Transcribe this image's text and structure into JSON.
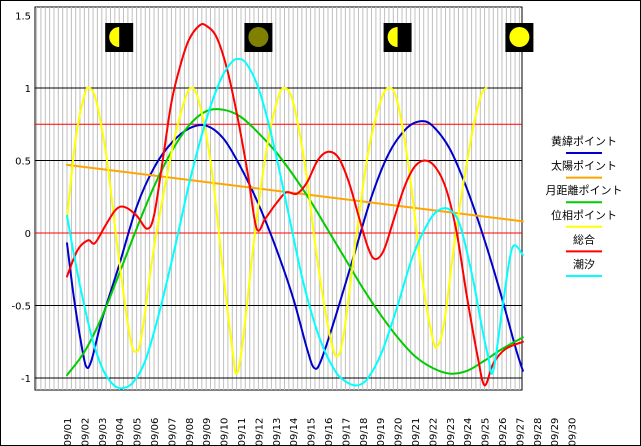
{
  "chart_data": {
    "type": "line",
    "title": "",
    "xlabel": "",
    "ylabel": "",
    "ylim": [
      -1.1,
      1.5
    ],
    "y_ticks": [
      {
        "value": 1.5,
        "label": "1.5"
      },
      {
        "value": 1,
        "label": "1"
      },
      {
        "value": 0.5,
        "label": "0.5"
      },
      {
        "value": 0,
        "label": "0"
      },
      {
        "value": -0.5,
        "label": "-0.5"
      },
      {
        "value": -1,
        "label": "-1"
      }
    ],
    "categories": [
      "09/01",
      "09/02",
      "09/03",
      "09/04",
      "09/05",
      "09/06",
      "09/07",
      "09/08",
      "09/09",
      "09/10",
      "09/11",
      "09/12",
      "09/13",
      "09/14",
      "09/15",
      "09/16",
      "09/17",
      "09/18",
      "09/19",
      "09/20",
      "09/21",
      "09/22",
      "09/23",
      "09/24",
      "09/25",
      "09/26",
      "09/27",
      "09/28",
      "09/29",
      "09/30"
    ],
    "grid": "horizontal black gridlines at 1, 0.5, -0.5, -1; red lines at 0.75 and 0; gray vertical lines every quarter day",
    "red_lines": [
      0.75,
      0
    ],
    "legend_position": "right",
    "moon_phases": [
      {
        "category": "09/04",
        "phase": "first-quarter",
        "color": "#ffff00"
      },
      {
        "category": "09/12",
        "phase": "new-moon",
        "color": "#808000"
      },
      {
        "category": "09/20",
        "phase": "first-quarter",
        "color": "#ffff00"
      },
      {
        "category": "09/27",
        "phase": "full-moon",
        "color": "#ffff00"
      }
    ],
    "series": [
      {
        "name": "黄緯ポイント",
        "color": "#0000cc",
        "points": [
          [
            0,
            -0.07
          ],
          [
            0.4,
            -0.45
          ],
          [
            0.8,
            -0.75
          ],
          [
            1.1,
            -0.92
          ],
          [
            1.4,
            -0.88
          ],
          [
            2,
            -0.6
          ],
          [
            3,
            -0.22
          ],
          [
            4,
            0.18
          ],
          [
            5,
            0.45
          ],
          [
            6,
            0.62
          ],
          [
            7,
            0.72
          ],
          [
            8,
            0.74
          ],
          [
            9,
            0.65
          ],
          [
            10,
            0.45
          ],
          [
            11,
            0.2
          ],
          [
            12,
            -0.1
          ],
          [
            13,
            -0.45
          ],
          [
            13.8,
            -0.8
          ],
          [
            14.2,
            -0.93
          ],
          [
            14.6,
            -0.88
          ],
          [
            15.5,
            -0.55
          ],
          [
            16.5,
            -0.15
          ],
          [
            17.5,
            0.25
          ],
          [
            18.5,
            0.55
          ],
          [
            19.5,
            0.72
          ],
          [
            20.3,
            0.77
          ],
          [
            21,
            0.74
          ],
          [
            22,
            0.58
          ],
          [
            23,
            0.3
          ],
          [
            24,
            -0.05
          ],
          [
            25,
            -0.45
          ],
          [
            25.8,
            -0.8
          ],
          [
            26.2,
            -0.95
          ]
        ]
      },
      {
        "name": "太陽ポイント",
        "color": "#ffa500",
        "points": [
          [
            0,
            0.47
          ],
          [
            26.2,
            0.08
          ]
        ]
      },
      {
        "name": "月距離ポイント",
        "color": "#00cc00",
        "points": [
          [
            0,
            -0.98
          ],
          [
            1,
            -0.82
          ],
          [
            2,
            -0.58
          ],
          [
            3,
            -0.28
          ],
          [
            4,
            0.03
          ],
          [
            5,
            0.32
          ],
          [
            6,
            0.56
          ],
          [
            7,
            0.74
          ],
          [
            8,
            0.84
          ],
          [
            9,
            0.85
          ],
          [
            10,
            0.8
          ],
          [
            11,
            0.69
          ],
          [
            12,
            0.56
          ],
          [
            13,
            0.4
          ],
          [
            14,
            0.22
          ],
          [
            15,
            0.02
          ],
          [
            16,
            -0.18
          ],
          [
            17,
            -0.38
          ],
          [
            18,
            -0.56
          ],
          [
            19,
            -0.72
          ],
          [
            20,
            -0.85
          ],
          [
            21,
            -0.93
          ],
          [
            22,
            -0.97
          ],
          [
            23,
            -0.95
          ],
          [
            24,
            -0.88
          ],
          [
            25,
            -0.8
          ],
          [
            26.2,
            -0.72
          ]
        ]
      },
      {
        "name": "位相ポイント",
        "color": "#ffff00",
        "points": [
          [
            0,
            0.1
          ],
          [
            0.5,
            0.65
          ],
          [
            1,
            0.95
          ],
          [
            1.3,
            1.0
          ],
          [
            1.7,
            0.9
          ],
          [
            2.3,
            0.5
          ],
          [
            2.9,
            -0.1
          ],
          [
            3.6,
            -0.7
          ],
          [
            3.95,
            -0.82
          ],
          [
            4.3,
            -0.7
          ],
          [
            5,
            -0.1
          ],
          [
            6,
            0.55
          ],
          [
            6.6,
            0.85
          ],
          [
            7.1,
            1.0
          ],
          [
            7.6,
            0.9
          ],
          [
            8.3,
            0.45
          ],
          [
            9,
            -0.3
          ],
          [
            9.5,
            -0.8
          ],
          [
            9.75,
            -0.97
          ],
          [
            10.1,
            -0.75
          ],
          [
            10.8,
            0.0
          ],
          [
            11.5,
            0.6
          ],
          [
            12.1,
            0.92
          ],
          [
            12.5,
            1.0
          ],
          [
            13,
            0.9
          ],
          [
            13.7,
            0.45
          ],
          [
            14.4,
            -0.2
          ],
          [
            15.1,
            -0.7
          ],
          [
            15.5,
            -0.85
          ],
          [
            15.9,
            -0.7
          ],
          [
            16.6,
            -0.05
          ],
          [
            17.3,
            0.55
          ],
          [
            18,
            0.9
          ],
          [
            18.5,
            1.0
          ],
          [
            19,
            0.9
          ],
          [
            19.7,
            0.4
          ],
          [
            20.4,
            -0.3
          ],
          [
            21,
            -0.72
          ],
          [
            21.3,
            -0.78
          ],
          [
            21.7,
            -0.6
          ],
          [
            22.4,
            0.05
          ],
          [
            23.3,
            0.7
          ],
          [
            23.8,
            0.95
          ],
          [
            24.1,
            1.0
          ]
        ]
      },
      {
        "name": "総合",
        "color": "#ff0000",
        "points": [
          [
            0,
            -0.3
          ],
          [
            0.6,
            -0.12
          ],
          [
            1.2,
            -0.05
          ],
          [
            1.6,
            -0.07
          ],
          [
            2.2,
            0.05
          ],
          [
            2.8,
            0.16
          ],
          [
            3.3,
            0.18
          ],
          [
            4,
            0.12
          ],
          [
            4.6,
            0.03
          ],
          [
            5,
            0.12
          ],
          [
            5.5,
            0.5
          ],
          [
            6,
            0.9
          ],
          [
            6.5,
            1.15
          ],
          [
            7,
            1.33
          ],
          [
            7.6,
            1.43
          ],
          [
            8,
            1.43
          ],
          [
            8.6,
            1.35
          ],
          [
            9.2,
            1.13
          ],
          [
            9.8,
            0.8
          ],
          [
            10.4,
            0.4
          ],
          [
            10.9,
            0.03
          ],
          [
            11.4,
            0.1
          ],
          [
            12,
            0.2
          ],
          [
            12.6,
            0.28
          ],
          [
            13.2,
            0.27
          ],
          [
            13.8,
            0.35
          ],
          [
            14.4,
            0.5
          ],
          [
            15,
            0.56
          ],
          [
            15.6,
            0.52
          ],
          [
            16.2,
            0.35
          ],
          [
            16.8,
            0.1
          ],
          [
            17.3,
            -0.1
          ],
          [
            17.7,
            -0.18
          ],
          [
            18.2,
            -0.12
          ],
          [
            18.8,
            0.1
          ],
          [
            19.4,
            0.32
          ],
          [
            20,
            0.46
          ],
          [
            20.6,
            0.5
          ],
          [
            21.2,
            0.45
          ],
          [
            21.8,
            0.3
          ],
          [
            22.4,
            0.0
          ],
          [
            23,
            -0.45
          ],
          [
            23.6,
            -0.85
          ],
          [
            24,
            -1.05
          ],
          [
            24.5,
            -0.9
          ],
          [
            25.2,
            -0.8
          ],
          [
            26.2,
            -0.75
          ]
        ]
      },
      {
        "name": "潮汐",
        "color": "#00ffff",
        "points": [
          [
            0,
            0.12
          ],
          [
            0.4,
            -0.15
          ],
          [
            0.9,
            -0.45
          ],
          [
            1.5,
            -0.75
          ],
          [
            2.1,
            -0.95
          ],
          [
            2.7,
            -1.05
          ],
          [
            3.2,
            -1.07
          ],
          [
            3.8,
            -1.03
          ],
          [
            4.5,
            -0.88
          ],
          [
            5.3,
            -0.55
          ],
          [
            6.2,
            -0.1
          ],
          [
            7.1,
            0.38
          ],
          [
            8,
            0.78
          ],
          [
            8.8,
            1.05
          ],
          [
            9.4,
            1.17
          ],
          [
            9.8,
            1.2
          ],
          [
            10.3,
            1.17
          ],
          [
            11,
            1.0
          ],
          [
            11.8,
            0.65
          ],
          [
            12.7,
            0.15
          ],
          [
            13.6,
            -0.35
          ],
          [
            14.5,
            -0.72
          ],
          [
            15.4,
            -0.95
          ],
          [
            16.1,
            -1.03
          ],
          [
            16.7,
            -1.05
          ],
          [
            17.3,
            -1.0
          ],
          [
            18.1,
            -0.82
          ],
          [
            19,
            -0.5
          ],
          [
            19.9,
            -0.15
          ],
          [
            20.8,
            0.08
          ],
          [
            21.4,
            0.16
          ],
          [
            22,
            0.16
          ],
          [
            22.6,
            0.05
          ],
          [
            23.3,
            -0.3
          ],
          [
            23.8,
            -0.62
          ],
          [
            24.2,
            -0.85
          ],
          [
            24.5,
            -0.95
          ],
          [
            25.1,
            -0.45
          ],
          [
            25.6,
            -0.1
          ],
          [
            26.2,
            -0.15
          ]
        ]
      }
    ]
  }
}
